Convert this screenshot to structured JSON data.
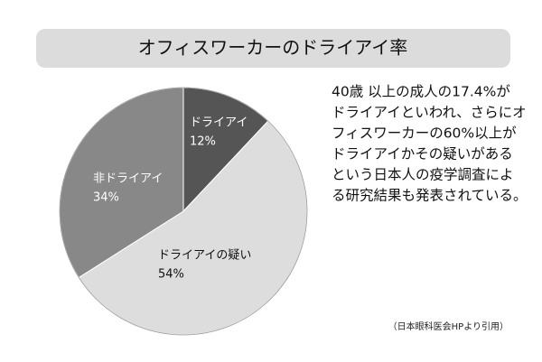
{
  "chart_data": {
    "type": "pie",
    "title": "オフィスワーカーのドライアイ率",
    "categories": [
      "ドライアイ",
      "ドライアイの疑い",
      "非ドライアイ"
    ],
    "values": [
      12,
      54,
      34
    ],
    "value_labels": [
      "12%",
      "54%",
      "34%"
    ],
    "colors": [
      "#555555",
      "#dddddd",
      "#888888"
    ],
    "description": [
      "40歳 以上の成人の17.4%が",
      "ドライアイといわれ、さらにオ",
      "フィスワーカーの60%以上が",
      "ドライアイかその疑いがある",
      "という日本人の疫学調査によ",
      "る研究結果も発表されている。"
    ],
    "source": "（日本眼科医会HPより引用）"
  }
}
